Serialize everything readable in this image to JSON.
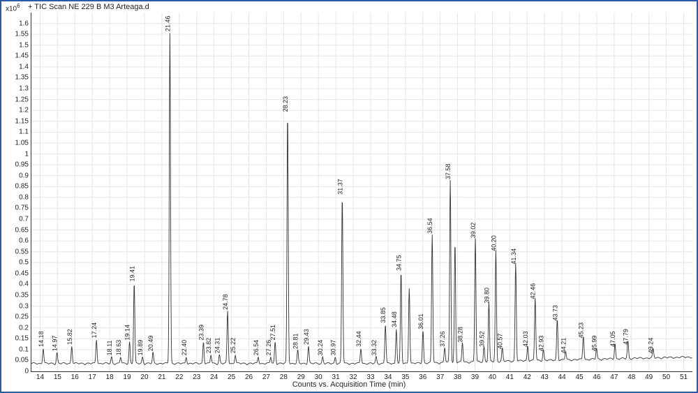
{
  "header": {
    "axis_exponent": "x10",
    "axis_exponent_sup": "6",
    "title_prefix": "+",
    "title": "TIC Scan NE 229 B M3 Arteaga.d"
  },
  "chart": {
    "type": "line",
    "xlabel": "Counts vs. Acquisition Time (min)",
    "xlim": [
      13.5,
      51.5
    ],
    "ylim": [
      0,
      1.65
    ],
    "xticks": [
      14,
      15,
      16,
      17,
      18,
      19,
      20,
      21,
      22,
      23,
      24,
      25,
      26,
      27,
      28,
      29,
      30,
      31,
      32,
      33,
      34,
      35,
      36,
      37,
      38,
      39,
      40,
      41,
      42,
      43,
      44,
      45,
      46,
      47,
      48,
      49,
      50,
      51
    ],
    "yticks": [
      0,
      0.05,
      0.1,
      0.15,
      0.2,
      0.25,
      0.3,
      0.35,
      0.4,
      0.45,
      0.5,
      0.55,
      0.6,
      0.65,
      0.7,
      0.75,
      0.8,
      0.85,
      0.9,
      0.95,
      1,
      1.05,
      1.1,
      1.15,
      1.2,
      1.25,
      1.3,
      1.35,
      1.4,
      1.45,
      1.5,
      1.55,
      1.6
    ],
    "grid_color": "#e6e6e6",
    "trace_color": "#333333",
    "background_color": "#ffffff",
    "border_color": "#2a5aa8",
    "tick_fontsize": 10,
    "label_fontsize": 11,
    "peak_label_fontsize": 9,
    "baseline": 0.03,
    "peaks": [
      {
        "rt": 14.18,
        "h": 0.1,
        "label": "14.18"
      },
      {
        "rt": 14.97,
        "h": 0.08,
        "label": "14.97"
      },
      {
        "rt": 15.82,
        "h": 0.11,
        "label": "15.82"
      },
      {
        "rt": 17.24,
        "h": 0.14,
        "label": "17.24"
      },
      {
        "rt": 18.11,
        "h": 0.06,
        "label": "18.11"
      },
      {
        "rt": 18.63,
        "h": 0.06,
        "label": "18.63"
      },
      {
        "rt": 19.14,
        "h": 0.13,
        "label": "19.14"
      },
      {
        "rt": 19.41,
        "h": 0.4,
        "label": "19.41"
      },
      {
        "rt": 19.89,
        "h": 0.06,
        "label": "19.89"
      },
      {
        "rt": 20.49,
        "h": 0.08,
        "label": "20.49"
      },
      {
        "rt": 21.46,
        "h": 1.55,
        "label": "21.46"
      },
      {
        "rt": 22.4,
        "h": 0.06,
        "label": "22.40"
      },
      {
        "rt": 23.39,
        "h": 0.13,
        "label": "23.39"
      },
      {
        "rt": 23.82,
        "h": 0.07,
        "label": "23.82"
      },
      {
        "rt": 24.31,
        "h": 0.07,
        "label": "24.31"
      },
      {
        "rt": 24.78,
        "h": 0.27,
        "label": "24.78"
      },
      {
        "rt": 25.22,
        "h": 0.07,
        "label": "25.22"
      },
      {
        "rt": 26.54,
        "h": 0.06,
        "label": "26.54"
      },
      {
        "rt": 27.26,
        "h": 0.06,
        "label": "27.26"
      },
      {
        "rt": 27.51,
        "h": 0.13,
        "label": "27.51"
      },
      {
        "rt": 28.23,
        "h": 1.18,
        "label": "28.23"
      },
      {
        "rt": 28.81,
        "h": 0.09,
        "label": "28.81"
      },
      {
        "rt": 29.43,
        "h": 0.11,
        "label": "29.43"
      },
      {
        "rt": 30.24,
        "h": 0.06,
        "label": "30.24"
      },
      {
        "rt": 30.97,
        "h": 0.06,
        "label": "30.97"
      },
      {
        "rt": 31.37,
        "h": 0.8,
        "label": "31.37"
      },
      {
        "rt": 32.44,
        "h": 0.1,
        "label": "32.44"
      },
      {
        "rt": 33.32,
        "h": 0.06,
        "label": "33.32"
      },
      {
        "rt": 33.85,
        "h": 0.21,
        "label": "33.85"
      },
      {
        "rt": 34.48,
        "h": 0.19,
        "label": "34.48"
      },
      {
        "rt": 34.75,
        "h": 0.45,
        "label": "34.75"
      },
      {
        "rt": 35.22,
        "h": 0.38,
        "label": ""
      },
      {
        "rt": 36.01,
        "h": 0.18,
        "label": "36.01"
      },
      {
        "rt": 36.54,
        "h": 0.62,
        "label": "36.54"
      },
      {
        "rt": 37.26,
        "h": 0.1,
        "label": "37.26"
      },
      {
        "rt": 37.58,
        "h": 0.87,
        "label": "37.58"
      },
      {
        "rt": 37.85,
        "h": 0.58,
        "label": ""
      },
      {
        "rt": 38.28,
        "h": 0.12,
        "label": "38.28"
      },
      {
        "rt": 39.02,
        "h": 0.6,
        "label": "39.02"
      },
      {
        "rt": 39.52,
        "h": 0.1,
        "label": "39.52"
      },
      {
        "rt": 39.8,
        "h": 0.3,
        "label": "39.80"
      },
      {
        "rt": 40.2,
        "h": 0.54,
        "label": "40.20"
      },
      {
        "rt": 40.57,
        "h": 0.09,
        "label": "40.57"
      },
      {
        "rt": 41.34,
        "h": 0.48,
        "label": "41.34"
      },
      {
        "rt": 42.03,
        "h": 0.1,
        "label": "42.03"
      },
      {
        "rt": 42.46,
        "h": 0.32,
        "label": "42.46"
      },
      {
        "rt": 42.93,
        "h": 0.08,
        "label": "42.93"
      },
      {
        "rt": 43.73,
        "h": 0.22,
        "label": "43.73"
      },
      {
        "rt": 44.21,
        "h": 0.07,
        "label": "44.21"
      },
      {
        "rt": 45.23,
        "h": 0.14,
        "label": "45.23"
      },
      {
        "rt": 45.99,
        "h": 0.08,
        "label": "45.99"
      },
      {
        "rt": 47.05,
        "h": 0.1,
        "label": "47.05"
      },
      {
        "rt": 47.79,
        "h": 0.11,
        "label": "47.79"
      },
      {
        "rt": 49.24,
        "h": 0.07,
        "label": "49.24"
      }
    ]
  }
}
